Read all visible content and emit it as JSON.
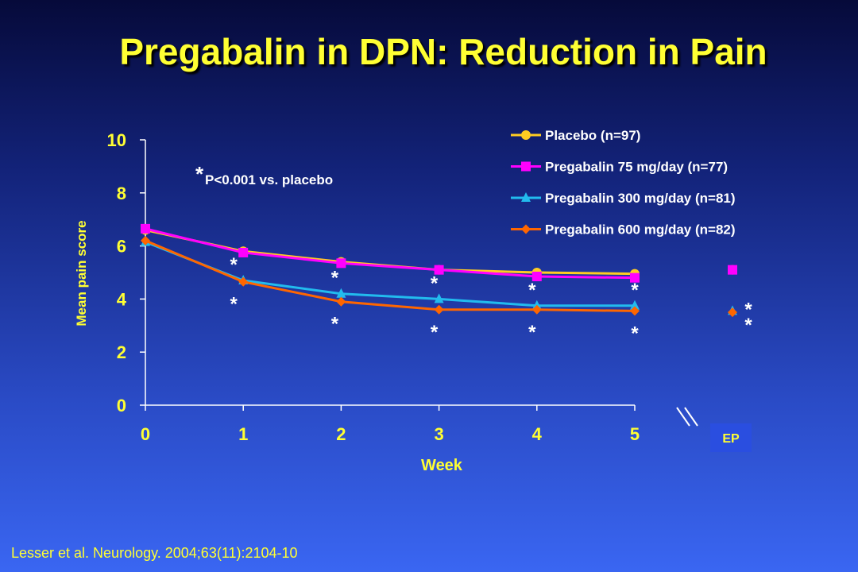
{
  "page": {
    "title": "Pregabalin in DPN:  Reduction in Pain",
    "citation": "Lesser et al. Neurology. 2004;63(11):2104-10"
  },
  "chart_data": {
    "type": "line",
    "xlabel": "Week",
    "ylabel": "Mean pain score",
    "categories": [
      "0",
      "1",
      "2",
      "3",
      "4",
      "5",
      "EP"
    ],
    "ylim": [
      0,
      10
    ],
    "yticks": [
      0,
      2,
      4,
      6,
      8,
      10
    ],
    "grid": false,
    "legend_position": "top-right",
    "annotation": {
      "star": "*",
      "text": "P<0.001 vs. placebo"
    },
    "endpoint_label": "EP",
    "colors": {
      "axis": "#ffffff",
      "text": "#ffff33",
      "series": [
        "#ffcc22",
        "#ff00ff",
        "#22bbee",
        "#ff6600"
      ]
    },
    "series": [
      {
        "name": "Placebo (n=97)",
        "marker": "circle",
        "values": [
          6.6,
          5.8,
          5.4,
          5.1,
          5.0,
          4.95,
          5.1
        ],
        "sig": [
          false,
          false,
          false,
          false,
          false,
          false,
          false
        ]
      },
      {
        "name": "Pregabalin 75 mg/day (n=77)",
        "marker": "square",
        "values": [
          6.65,
          5.75,
          5.35,
          5.1,
          4.85,
          4.8,
          5.1
        ],
        "sig": [
          false,
          false,
          false,
          false,
          false,
          false,
          false
        ]
      },
      {
        "name": "Pregabalin 300 mg/day (n=81)",
        "marker": "triangle",
        "values": [
          6.15,
          4.7,
          4.2,
          4.0,
          3.75,
          3.75,
          3.55
        ],
        "sig": [
          false,
          true,
          true,
          true,
          true,
          true,
          true
        ]
      },
      {
        "name": "Pregabalin 600 mg/day (n=82)",
        "marker": "diamond",
        "values": [
          6.2,
          4.65,
          3.9,
          3.6,
          3.6,
          3.55,
          3.5
        ],
        "sig": [
          false,
          true,
          true,
          true,
          true,
          true,
          true
        ]
      }
    ]
  }
}
